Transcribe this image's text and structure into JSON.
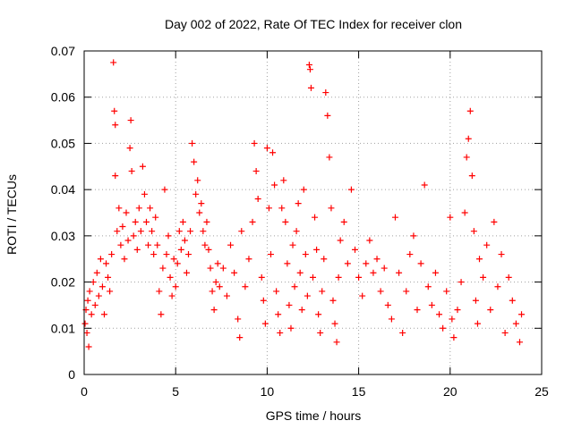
{
  "chart_data": {
    "type": "scatter",
    "title": "Day 002 of 2022, Rate Of TEC Index for receiver clon",
    "xlabel": "GPS time / hours",
    "ylabel": "ROTI / TECUs",
    "xlim": [
      0,
      25
    ],
    "ylim": [
      0,
      0.07
    ],
    "xticks": [
      0,
      5,
      10,
      15,
      20,
      25
    ],
    "yticks": [
      0,
      0.01,
      0.02,
      0.03,
      0.04,
      0.05,
      0.06,
      0.07
    ],
    "xtick_labels": [
      "0",
      "5",
      "10",
      "15",
      "20",
      "25"
    ],
    "ytick_labels": [
      "0",
      "0.01",
      "0.02",
      "0.03",
      "0.04",
      "0.05",
      "0.06",
      "0.07"
    ],
    "grid": true,
    "marker": "plus",
    "color": "#ff0000",
    "series": [
      {
        "points": [
          [
            0.05,
            0.011
          ],
          [
            0.1,
            0.014
          ],
          [
            0.15,
            0.009
          ],
          [
            0.2,
            0.016
          ],
          [
            0.25,
            0.006
          ],
          [
            0.3,
            0.018
          ],
          [
            0.4,
            0.013
          ],
          [
            0.5,
            0.02
          ],
          [
            0.6,
            0.015
          ],
          [
            0.7,
            0.022
          ],
          [
            0.8,
            0.017
          ],
          [
            0.9,
            0.025
          ],
          [
            1.0,
            0.019
          ],
          [
            1.1,
            0.013
          ],
          [
            1.2,
            0.024
          ],
          [
            1.3,
            0.021
          ],
          [
            1.4,
            0.018
          ],
          [
            1.5,
            0.026
          ],
          [
            1.6,
            0.0675
          ],
          [
            1.65,
            0.057
          ],
          [
            1.7,
            0.054
          ],
          [
            1.7,
            0.043
          ],
          [
            1.8,
            0.031
          ],
          [
            1.9,
            0.036
          ],
          [
            2.0,
            0.028
          ],
          [
            2.1,
            0.032
          ],
          [
            2.2,
            0.025
          ],
          [
            2.3,
            0.035
          ],
          [
            2.4,
            0.029
          ],
          [
            2.5,
            0.049
          ],
          [
            2.55,
            0.055
          ],
          [
            2.6,
            0.044
          ],
          [
            2.7,
            0.03
          ],
          [
            2.8,
            0.033
          ],
          [
            2.9,
            0.027
          ],
          [
            3.0,
            0.036
          ],
          [
            3.1,
            0.031
          ],
          [
            3.2,
            0.045
          ],
          [
            3.3,
            0.039
          ],
          [
            3.4,
            0.033
          ],
          [
            3.5,
            0.028
          ],
          [
            3.6,
            0.036
          ],
          [
            3.7,
            0.031
          ],
          [
            3.8,
            0.026
          ],
          [
            3.9,
            0.034
          ],
          [
            4.0,
            0.028
          ],
          [
            4.1,
            0.018
          ],
          [
            4.2,
            0.013
          ],
          [
            4.3,
            0.023
          ],
          [
            4.4,
            0.04
          ],
          [
            4.5,
            0.026
          ],
          [
            4.6,
            0.03
          ],
          [
            4.7,
            0.021
          ],
          [
            4.8,
            0.017
          ],
          [
            4.9,
            0.025
          ],
          [
            5.0,
            0.019
          ],
          [
            5.1,
            0.024
          ],
          [
            5.2,
            0.031
          ],
          [
            5.3,
            0.027
          ],
          [
            5.4,
            0.033
          ],
          [
            5.5,
            0.029
          ],
          [
            5.6,
            0.022
          ],
          [
            5.7,
            0.026
          ],
          [
            5.8,
            0.031
          ],
          [
            5.9,
            0.05
          ],
          [
            6.0,
            0.046
          ],
          [
            6.1,
            0.039
          ],
          [
            6.2,
            0.042
          ],
          [
            6.3,
            0.035
          ],
          [
            6.4,
            0.037
          ],
          [
            6.5,
            0.031
          ],
          [
            6.6,
            0.028
          ],
          [
            6.7,
            0.033
          ],
          [
            6.8,
            0.027
          ],
          [
            6.9,
            0.023
          ],
          [
            7.0,
            0.018
          ],
          [
            7.1,
            0.014
          ],
          [
            7.2,
            0.02
          ],
          [
            7.3,
            0.024
          ],
          [
            7.4,
            0.019
          ],
          [
            7.6,
            0.023
          ],
          [
            7.8,
            0.017
          ],
          [
            8.0,
            0.028
          ],
          [
            8.2,
            0.022
          ],
          [
            8.4,
            0.012
          ],
          [
            8.5,
            0.008
          ],
          [
            8.6,
            0.031
          ],
          [
            8.8,
            0.019
          ],
          [
            9.0,
            0.025
          ],
          [
            9.2,
            0.033
          ],
          [
            9.3,
            0.05
          ],
          [
            9.4,
            0.044
          ],
          [
            9.5,
            0.038
          ],
          [
            9.7,
            0.021
          ],
          [
            9.8,
            0.016
          ],
          [
            9.9,
            0.011
          ],
          [
            10.0,
            0.049
          ],
          [
            10.1,
            0.036
          ],
          [
            10.2,
            0.026
          ],
          [
            10.3,
            0.048
          ],
          [
            10.4,
            0.041
          ],
          [
            10.5,
            0.018
          ],
          [
            10.6,
            0.013
          ],
          [
            10.7,
            0.009
          ],
          [
            10.8,
            0.036
          ],
          [
            10.9,
            0.042
          ],
          [
            11.0,
            0.033
          ],
          [
            11.1,
            0.024
          ],
          [
            11.2,
            0.015
          ],
          [
            11.3,
            0.01
          ],
          [
            11.4,
            0.028
          ],
          [
            11.5,
            0.019
          ],
          [
            11.6,
            0.031
          ],
          [
            11.7,
            0.037
          ],
          [
            11.8,
            0.022
          ],
          [
            11.9,
            0.014
          ],
          [
            12.0,
            0.04
          ],
          [
            12.1,
            0.026
          ],
          [
            12.2,
            0.017
          ],
          [
            12.3,
            0.067
          ],
          [
            12.35,
            0.066
          ],
          [
            12.4,
            0.062
          ],
          [
            12.5,
            0.021
          ],
          [
            12.6,
            0.034
          ],
          [
            12.7,
            0.027
          ],
          [
            12.8,
            0.013
          ],
          [
            12.9,
            0.009
          ],
          [
            13.0,
            0.018
          ],
          [
            13.1,
            0.025
          ],
          [
            13.2,
            0.061
          ],
          [
            13.3,
            0.056
          ],
          [
            13.4,
            0.047
          ],
          [
            13.5,
            0.036
          ],
          [
            13.6,
            0.016
          ],
          [
            13.7,
            0.011
          ],
          [
            13.8,
            0.007
          ],
          [
            13.9,
            0.021
          ],
          [
            14.0,
            0.029
          ],
          [
            14.2,
            0.033
          ],
          [
            14.4,
            0.024
          ],
          [
            14.6,
            0.04
          ],
          [
            14.8,
            0.027
          ],
          [
            15.0,
            0.021
          ],
          [
            15.2,
            0.017
          ],
          [
            15.4,
            0.024
          ],
          [
            15.6,
            0.029
          ],
          [
            15.8,
            0.022
          ],
          [
            16.0,
            0.025
          ],
          [
            16.2,
            0.018
          ],
          [
            16.4,
            0.023
          ],
          [
            16.6,
            0.015
          ],
          [
            16.8,
            0.012
          ],
          [
            17.0,
            0.034
          ],
          [
            17.2,
            0.022
          ],
          [
            17.4,
            0.009
          ],
          [
            17.6,
            0.018
          ],
          [
            17.8,
            0.026
          ],
          [
            18.0,
            0.03
          ],
          [
            18.2,
            0.014
          ],
          [
            18.4,
            0.024
          ],
          [
            18.6,
            0.041
          ],
          [
            18.8,
            0.019
          ],
          [
            19.0,
            0.015
          ],
          [
            19.2,
            0.022
          ],
          [
            19.4,
            0.013
          ],
          [
            19.6,
            0.01
          ],
          [
            19.8,
            0.018
          ],
          [
            20.0,
            0.034
          ],
          [
            20.1,
            0.012
          ],
          [
            20.2,
            0.008
          ],
          [
            20.4,
            0.014
          ],
          [
            20.6,
            0.02
          ],
          [
            20.8,
            0.035
          ],
          [
            20.9,
            0.047
          ],
          [
            21.0,
            0.051
          ],
          [
            21.1,
            0.057
          ],
          [
            21.2,
            0.043
          ],
          [
            21.3,
            0.031
          ],
          [
            21.4,
            0.016
          ],
          [
            21.5,
            0.011
          ],
          [
            21.6,
            0.025
          ],
          [
            21.8,
            0.021
          ],
          [
            22.0,
            0.028
          ],
          [
            22.2,
            0.014
          ],
          [
            22.4,
            0.033
          ],
          [
            22.6,
            0.019
          ],
          [
            22.8,
            0.026
          ],
          [
            23.0,
            0.009
          ],
          [
            23.2,
            0.021
          ],
          [
            23.4,
            0.016
          ],
          [
            23.6,
            0.011
          ],
          [
            23.8,
            0.007
          ],
          [
            23.9,
            0.013
          ]
        ]
      }
    ]
  }
}
